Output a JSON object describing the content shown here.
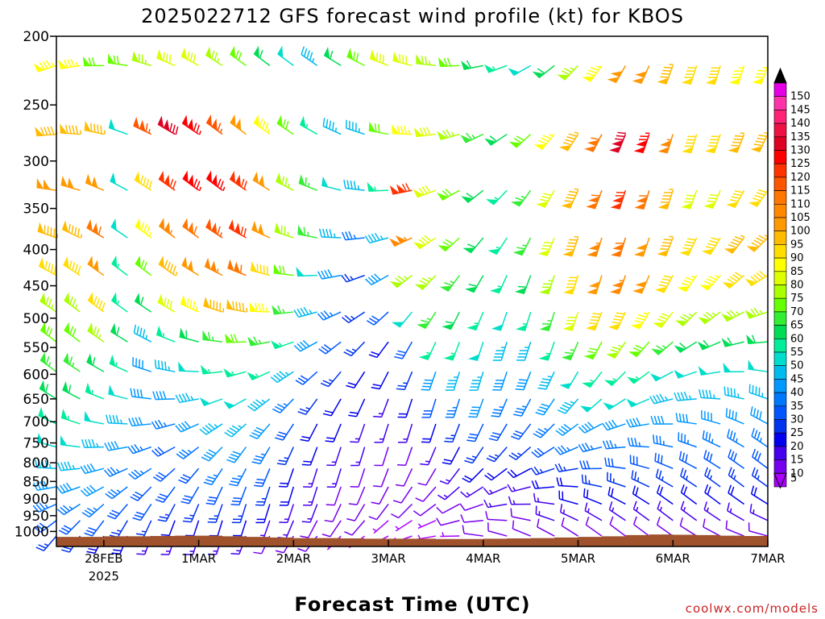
{
  "chart_data": {
    "type": "wind_barb_profile",
    "title": "2025022712 GFS forecast wind profile (kt) for KBOS",
    "xlabel": "Forecast Time (UTC)",
    "ylabel": "",
    "credit": "coolwx.com/models",
    "y_axis": {
      "scale": "log",
      "inverted": true,
      "range": [
        200,
        1050
      ],
      "ticks": [
        200,
        250,
        300,
        350,
        400,
        450,
        500,
        550,
        600,
        650,
        700,
        750,
        800,
        850,
        900,
        950,
        1000
      ]
    },
    "x_axis": {
      "range": [
        "2025-02-27 12Z",
        "2025-03-07 00Z"
      ],
      "ticks": [
        {
          "day": 1,
          "label": "28FEB",
          "sublabel": "2025"
        },
        {
          "day": 2,
          "label": "1MAR",
          "sublabel": ""
        },
        {
          "day": 3,
          "label": "2MAR",
          "sublabel": ""
        },
        {
          "day": 4,
          "label": "3MAR",
          "sublabel": ""
        },
        {
          "day": 5,
          "label": "4MAR",
          "sublabel": ""
        },
        {
          "day": 6,
          "label": "5MAR",
          "sublabel": ""
        },
        {
          "day": 7,
          "label": "6MAR",
          "sublabel": ""
        },
        {
          "day": 8,
          "label": "7MAR",
          "sublabel": ""
        }
      ]
    },
    "times": [
      0.5,
      0.75,
      1.0,
      1.25,
      1.5,
      1.75,
      2.0,
      2.25,
      2.5,
      2.75,
      3.0,
      3.25,
      3.5,
      3.75,
      4.0,
      4.25,
      4.5,
      4.75,
      5.0,
      5.25,
      5.5,
      5.75,
      6.0,
      6.25,
      6.5,
      6.75,
      7.0,
      7.25,
      7.5,
      7.75,
      8.0
    ],
    "levels": [
      220,
      275,
      330,
      385,
      435,
      490,
      540,
      595,
      650,
      705,
      760,
      815,
      865,
      915,
      965,
      1015
    ],
    "speed_kt": [
      [
        85,
        85,
        70,
        70,
        75,
        80,
        80,
        75,
        70,
        60,
        50,
        45,
        60,
        70,
        80,
        80,
        75,
        70,
        60,
        55,
        50,
        60,
        75,
        85,
        100,
        100,
        95,
        90,
        90,
        85,
        85
      ],
      [
        95,
        95,
        95,
        50,
        115,
        130,
        125,
        115,
        100,
        85,
        70,
        55,
        45,
        45,
        70,
        85,
        80,
        75,
        65,
        60,
        70,
        85,
        95,
        110,
        130,
        125,
        105,
        90,
        90,
        95,
        95
      ],
      [
        100,
        100,
        100,
        50,
        90,
        120,
        125,
        125,
        120,
        100,
        75,
        65,
        50,
        45,
        55,
        120,
        80,
        70,
        60,
        55,
        65,
        80,
        95,
        110,
        120,
        110,
        95,
        80,
        80,
        90,
        90
      ],
      [
        95,
        95,
        110,
        50,
        85,
        105,
        110,
        115,
        120,
        100,
        75,
        65,
        45,
        35,
        45,
        105,
        80,
        70,
        60,
        55,
        65,
        80,
        95,
        105,
        110,
        100,
        95,
        90,
        90,
        95,
        95
      ],
      [
        90,
        90,
        100,
        55,
        70,
        95,
        100,
        105,
        110,
        90,
        70,
        50,
        40,
        25,
        40,
        75,
        75,
        65,
        60,
        55,
        60,
        75,
        90,
        100,
        105,
        100,
        90,
        85,
        85,
        90,
        90
      ],
      [
        75,
        75,
        90,
        55,
        60,
        80,
        85,
        95,
        95,
        85,
        65,
        45,
        35,
        25,
        30,
        50,
        65,
        60,
        55,
        50,
        55,
        65,
        80,
        90,
        90,
        85,
        80,
        75,
        75,
        75,
        75
      ],
      [
        70,
        70,
        75,
        60,
        45,
        55,
        60,
        65,
        70,
        65,
        55,
        40,
        30,
        25,
        20,
        30,
        55,
        55,
        50,
        45,
        45,
        55,
        65,
        70,
        75,
        70,
        65,
        60,
        60,
        60,
        60
      ],
      [
        65,
        65,
        60,
        55,
        40,
        45,
        50,
        55,
        55,
        55,
        45,
        30,
        25,
        20,
        20,
        25,
        40,
        45,
        45,
        40,
        40,
        45,
        50,
        55,
        55,
        55,
        50,
        50,
        50,
        50,
        50
      ],
      [
        60,
        60,
        55,
        50,
        40,
        40,
        45,
        50,
        50,
        45,
        35,
        25,
        20,
        20,
        15,
        20,
        30,
        35,
        40,
        35,
        35,
        40,
        45,
        50,
        50,
        50,
        45,
        45,
        45,
        45,
        45
      ],
      [
        55,
        55,
        50,
        45,
        40,
        35,
        40,
        45,
        45,
        40,
        30,
        20,
        20,
        15,
        15,
        15,
        20,
        25,
        30,
        30,
        30,
        35,
        40,
        40,
        40,
        40,
        40,
        40,
        40,
        40,
        40
      ],
      [
        50,
        50,
        45,
        40,
        35,
        30,
        35,
        40,
        40,
        35,
        25,
        20,
        15,
        15,
        10,
        10,
        15,
        20,
        25,
        25,
        25,
        30,
        35,
        35,
        35,
        35,
        35,
        35,
        35,
        35,
        35
      ],
      [
        45,
        45,
        40,
        35,
        35,
        30,
        30,
        35,
        35,
        30,
        20,
        15,
        15,
        10,
        10,
        10,
        10,
        15,
        20,
        20,
        20,
        25,
        25,
        30,
        30,
        30,
        30,
        30,
        30,
        30,
        30
      ],
      [
        40,
        40,
        40,
        35,
        30,
        30,
        30,
        30,
        30,
        25,
        20,
        15,
        10,
        10,
        10,
        10,
        10,
        15,
        15,
        15,
        15,
        20,
        20,
        25,
        25,
        25,
        25,
        25,
        25,
        25,
        25
      ],
      [
        35,
        35,
        35,
        30,
        30,
        25,
        25,
        25,
        25,
        20,
        15,
        15,
        10,
        10,
        10,
        10,
        10,
        10,
        10,
        15,
        15,
        15,
        20,
        20,
        20,
        20,
        20,
        20,
        20,
        20,
        20
      ],
      [
        30,
        30,
        30,
        25,
        25,
        20,
        20,
        20,
        20,
        15,
        15,
        10,
        10,
        10,
        5,
        5,
        5,
        10,
        10,
        10,
        10,
        15,
        15,
        15,
        15,
        15,
        15,
        15,
        15,
        15,
        15
      ],
      [
        25,
        25,
        20,
        20,
        15,
        15,
        15,
        15,
        15,
        10,
        10,
        10,
        5,
        5,
        5,
        5,
        5,
        5,
        10,
        10,
        10,
        10,
        10,
        10,
        10,
        10,
        10,
        10,
        10,
        10,
        10
      ]
    ],
    "surface_pressure_hpa": [
      1018,
      1018,
      1016,
      1016,
      1015,
      1014,
      1014,
      1016,
      1018,
      1020,
      1022,
      1022,
      1023,
      1024,
      1024,
      1024,
      1025,
      1025,
      1024,
      1023,
      1022,
      1020,
      1018,
      1016,
      1012,
      1010,
      1011,
      1012,
      1014,
      1015,
      1016
    ],
    "colorbar": {
      "ticks": [
        150,
        145,
        140,
        135,
        130,
        125,
        120,
        115,
        110,
        105,
        100,
        95,
        90,
        85,
        80,
        75,
        70,
        65,
        60,
        55,
        50,
        45,
        40,
        35,
        30,
        25,
        20,
        15,
        10,
        5
      ],
      "colors": [
        "#e600e6",
        "#ff33aa",
        "#ff2277",
        "#ee1144",
        "#dd0022",
        "#ff0000",
        "#ff3300",
        "#ff5500",
        "#ff7700",
        "#ff8800",
        "#ff9900",
        "#ffbb00",
        "#ffdd00",
        "#ffff00",
        "#ddff00",
        "#aaff00",
        "#66ff00",
        "#33ee33",
        "#00dd55",
        "#00ee99",
        "#00ddcc",
        "#00bbee",
        "#0099ff",
        "#0077ff",
        "#0055ff",
        "#0033ee",
        "#0000ee",
        "#4400ee",
        "#7700ee",
        "#aa00ff"
      ],
      "top_arrow_color": "#000000",
      "bottom_arrow_color": "#aa00ff"
    },
    "terrain_color": "#a0522d",
    "grid": false,
    "legend_placement": "right colorbar"
  }
}
